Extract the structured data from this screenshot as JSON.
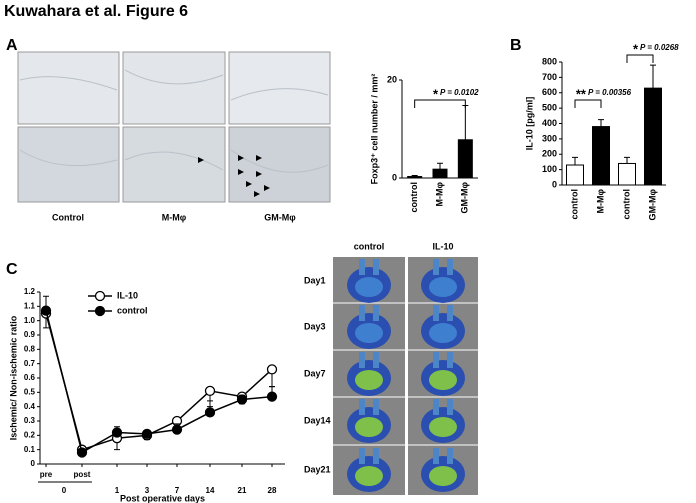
{
  "figure": {
    "title": "Kuwahara et al. Figure 6",
    "panels": [
      "A",
      "B",
      "C"
    ],
    "micrographs": {
      "columns": [
        "Control",
        "M-Mφ",
        "GM-Mφ"
      ]
    },
    "perfusion_images": {
      "columns": [
        "control",
        "IL-10"
      ],
      "rows": [
        "Day1",
        "Day3",
        "Day7",
        "Day14",
        "Day21"
      ]
    }
  },
  "chart_data": [
    {
      "type": "bar",
      "y_label": "Foxp3⁺ cell number / mm²",
      "categories": [
        "control",
        "M-Mφ",
        "GM-Mφ"
      ],
      "values": [
        0.3,
        1.8,
        7.8
      ],
      "errors": [
        0.2,
        1.2,
        7
      ],
      "colors": [
        "#000000",
        "#000000",
        "#000000"
      ],
      "ylim": [
        0,
        20
      ],
      "yticks": [
        0,
        20
      ],
      "annotations": [
        {
          "star": "*",
          "p": "P = 0.0102"
        }
      ]
    },
    {
      "type": "bar",
      "y_label": "IL-10 [pg/ml]",
      "categories": [
        "control",
        "M-Mφ",
        "control",
        "GM-Mφ"
      ],
      "values": [
        130,
        380,
        140,
        630
      ],
      "errors": [
        50,
        45,
        40,
        150
      ],
      "colors": [
        "#ffffff",
        "#000000",
        "#ffffff",
        "#000000"
      ],
      "ylim": [
        0,
        800
      ],
      "yticks": [
        0,
        100,
        200,
        300,
        400,
        500,
        600,
        700,
        800
      ],
      "annotations": [
        {
          "star": "**",
          "p": "P = 0.00356"
        },
        {
          "star": "*",
          "p": "P = 0.0268"
        }
      ]
    },
    {
      "type": "line",
      "y_label": "Ischemic/ Non-ischemic ratio",
      "x_label": "Post operative days",
      "categories": [
        "pre",
        "post",
        "1",
        "3",
        "7",
        "14",
        "21",
        "28"
      ],
      "group_label": "0",
      "ylim": [
        0,
        1.2
      ],
      "yticks": [
        0,
        0.1,
        0.2,
        0.3,
        0.4,
        0.5,
        0.6,
        0.7,
        0.8,
        0.9,
        {
          "value": 1,
          "label": "1.0"
        },
        1.1,
        1.2
      ],
      "series": [
        {
          "name": "IL-10",
          "color": "#ffffff",
          "values": [
            1.05,
            0.1,
            0.18,
            0.2,
            0.3,
            0.51,
            0.47,
            0.66
          ],
          "errors": [
            0.1,
            0.03,
            0.08,
            0.03,
            0.05,
            0.11,
            0.05,
            0.12
          ]
        },
        {
          "name": "control",
          "color": "#000000",
          "values": [
            1.07,
            0.08,
            0.22,
            0.21,
            0.24,
            0.36,
            0.45,
            0.47
          ],
          "errors": [
            0.1,
            0.02,
            0.04,
            0.02,
            0.04,
            0.08,
            0.03,
            0.07
          ]
        }
      ]
    }
  ]
}
